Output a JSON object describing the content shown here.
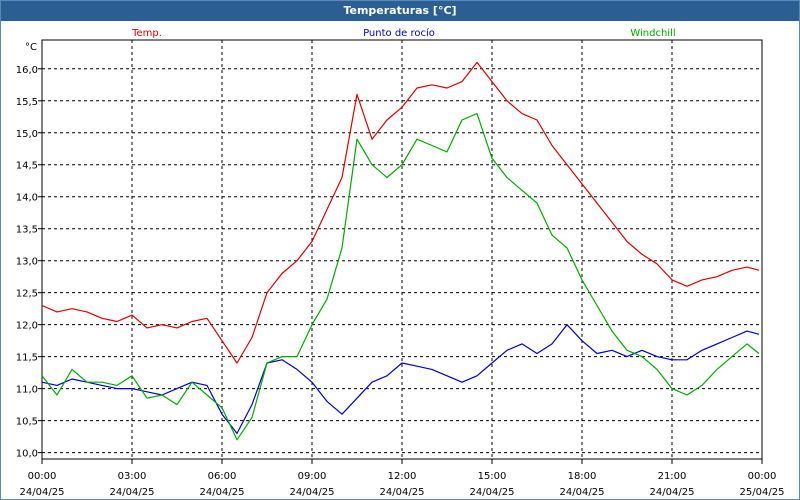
{
  "window": {
    "title": "Temperaturas [°C]"
  },
  "chart_data": {
    "type": "line",
    "title": "Temperaturas [°C]",
    "ylabel": "°C",
    "xlabel": "",
    "ylim": [
      9.9,
      16.45
    ],
    "xlim": [
      0,
      24
    ],
    "grid": true,
    "legend_position": "top",
    "y_ticks": [
      {
        "value": 10.0,
        "label": "10,0"
      },
      {
        "value": 10.5,
        "label": "10,5"
      },
      {
        "value": 11.0,
        "label": "11,0"
      },
      {
        "value": 11.5,
        "label": "11,5"
      },
      {
        "value": 12.0,
        "label": "12,0"
      },
      {
        "value": 12.5,
        "label": "12,5"
      },
      {
        "value": 13.0,
        "label": "13,0"
      },
      {
        "value": 13.5,
        "label": "13,5"
      },
      {
        "value": 14.0,
        "label": "14,0"
      },
      {
        "value": 14.5,
        "label": "14,5"
      },
      {
        "value": 15.0,
        "label": "15,0"
      },
      {
        "value": 15.5,
        "label": "15,5"
      },
      {
        "value": 16.0,
        "label": "16,0"
      }
    ],
    "x_ticks": [
      {
        "value": 0,
        "time": "00:00",
        "date": "24/04/25"
      },
      {
        "value": 3,
        "time": "03:00",
        "date": "24/04/25"
      },
      {
        "value": 6,
        "time": "06:00",
        "date": "24/04/25"
      },
      {
        "value": 9,
        "time": "09:00",
        "date": "24/04/25"
      },
      {
        "value": 12,
        "time": "12:00",
        "date": "24/04/25"
      },
      {
        "value": 15,
        "time": "15:00",
        "date": "24/04/25"
      },
      {
        "value": 18,
        "time": "18:00",
        "date": "24/04/25"
      },
      {
        "value": 21,
        "time": "21:00",
        "date": "24/04/25"
      },
      {
        "value": 24,
        "time": "00:00",
        "date": "25/04/25"
      }
    ],
    "series": [
      {
        "name": "Temp.",
        "color": "#dd0000",
        "x": [
          0,
          0.5,
          1,
          1.5,
          2,
          2.5,
          3,
          3.5,
          4,
          4.5,
          5,
          5.5,
          6,
          6.5,
          7,
          7.5,
          8,
          8.5,
          9,
          9.5,
          10,
          10.5,
          11,
          11.5,
          12,
          12.5,
          13,
          13.5,
          14,
          14.5,
          15,
          15.5,
          16,
          16.5,
          17,
          17.5,
          18,
          18.5,
          19,
          19.5,
          20,
          20.5,
          21,
          21.5,
          22,
          22.5,
          23,
          23.5,
          23.9
        ],
        "values": [
          12.3,
          12.2,
          12.25,
          12.2,
          12.1,
          12.05,
          12.15,
          11.95,
          12.0,
          11.95,
          12.05,
          12.1,
          11.75,
          11.4,
          11.8,
          12.5,
          12.8,
          13.0,
          13.3,
          13.8,
          14.3,
          15.6,
          14.9,
          15.2,
          15.4,
          15.7,
          15.75,
          15.7,
          15.8,
          16.1,
          15.8,
          15.5,
          15.3,
          15.2,
          14.8,
          14.5,
          14.2,
          13.9,
          13.6,
          13.3,
          13.1,
          12.95,
          12.7,
          12.6,
          12.7,
          12.75,
          12.85,
          12.9,
          12.85
        ]
      },
      {
        "name": "Punto de rocío",
        "color": "#0000cc",
        "x": [
          0,
          0.5,
          1,
          1.5,
          2,
          2.5,
          3,
          3.5,
          4,
          4.5,
          5,
          5.5,
          6,
          6.5,
          7,
          7.5,
          8,
          8.5,
          9,
          9.5,
          10,
          10.5,
          11,
          11.5,
          12,
          12.5,
          13,
          13.5,
          14,
          14.5,
          15,
          15.5,
          16,
          16.5,
          17,
          17.5,
          18,
          18.5,
          19,
          19.5,
          20,
          20.5,
          21,
          21.5,
          22,
          22.5,
          23,
          23.5,
          23.9
        ],
        "values": [
          11.1,
          11.05,
          11.15,
          11.1,
          11.05,
          11.0,
          11.0,
          10.95,
          10.9,
          11.0,
          11.1,
          11.05,
          10.6,
          10.3,
          10.75,
          11.4,
          11.45,
          11.3,
          11.1,
          10.8,
          10.6,
          10.85,
          11.1,
          11.2,
          11.4,
          11.35,
          11.3,
          11.2,
          11.1,
          11.2,
          11.4,
          11.6,
          11.7,
          11.55,
          11.7,
          12.0,
          11.75,
          11.55,
          11.6,
          11.5,
          11.6,
          11.5,
          11.45,
          11.45,
          11.6,
          11.7,
          11.8,
          11.9,
          11.85
        ]
      },
      {
        "name": "Windchill",
        "color": "#00aa00",
        "x": [
          0,
          0.5,
          1,
          1.5,
          2,
          2.5,
          3,
          3.5,
          4,
          4.5,
          5,
          5.5,
          6,
          6.5,
          7,
          7.5,
          8,
          8.5,
          9,
          9.5,
          10,
          10.5,
          11,
          11.5,
          12,
          12.5,
          13,
          13.5,
          14,
          14.5,
          15,
          15.5,
          16,
          16.5,
          17,
          17.5,
          18,
          18.5,
          19,
          19.5,
          20,
          20.5,
          21,
          21.5,
          22,
          22.5,
          23,
          23.5,
          23.9
        ],
        "values": [
          11.2,
          10.9,
          11.3,
          11.1,
          11.1,
          11.05,
          11.2,
          10.85,
          10.9,
          10.75,
          11.1,
          10.9,
          10.7,
          10.2,
          10.55,
          11.4,
          11.5,
          11.5,
          12.0,
          12.4,
          13.2,
          14.9,
          14.5,
          14.3,
          14.5,
          14.9,
          14.8,
          14.7,
          15.2,
          15.3,
          14.6,
          14.3,
          14.1,
          13.9,
          13.4,
          13.2,
          12.7,
          12.3,
          11.9,
          11.6,
          11.5,
          11.3,
          11.0,
          10.9,
          11.05,
          11.3,
          11.5,
          11.7,
          11.55
        ]
      }
    ]
  }
}
